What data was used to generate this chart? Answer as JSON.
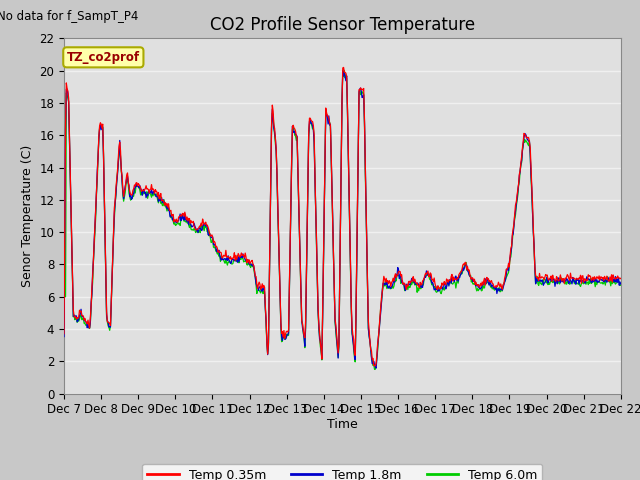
{
  "title": "CO2 Profile Sensor Temperature",
  "ylabel": "Senor Temperature (C)",
  "xlabel": "Time",
  "no_data_text": "No data for f_SampT_P4",
  "legend_box_label": "TZ_co2prof",
  "ylim": [
    0,
    22
  ],
  "xtick_labels": [
    "Dec 7",
    "Dec 8",
    "Dec 9",
    "Dec 10",
    "Dec 11",
    "Dec 12",
    "Dec 13",
    "Dec 14",
    "Dec 15",
    "Dec 16",
    "Dec 17",
    "Dec 18",
    "Dec 19",
    "Dec 20",
    "Dec 21",
    "Dec 22"
  ],
  "line_colors": [
    "#ff0000",
    "#0000cc",
    "#00cc00"
  ],
  "line_labels": [
    "Temp 0.35m",
    "Temp 1.8m",
    "Temp 6.0m"
  ],
  "bg_color": "#c8c8c8",
  "plot_bg_color": "#e0e0e0",
  "grid_color": "#f0f0f0",
  "title_fontsize": 12,
  "label_fontsize": 9,
  "tick_fontsize": 8.5
}
